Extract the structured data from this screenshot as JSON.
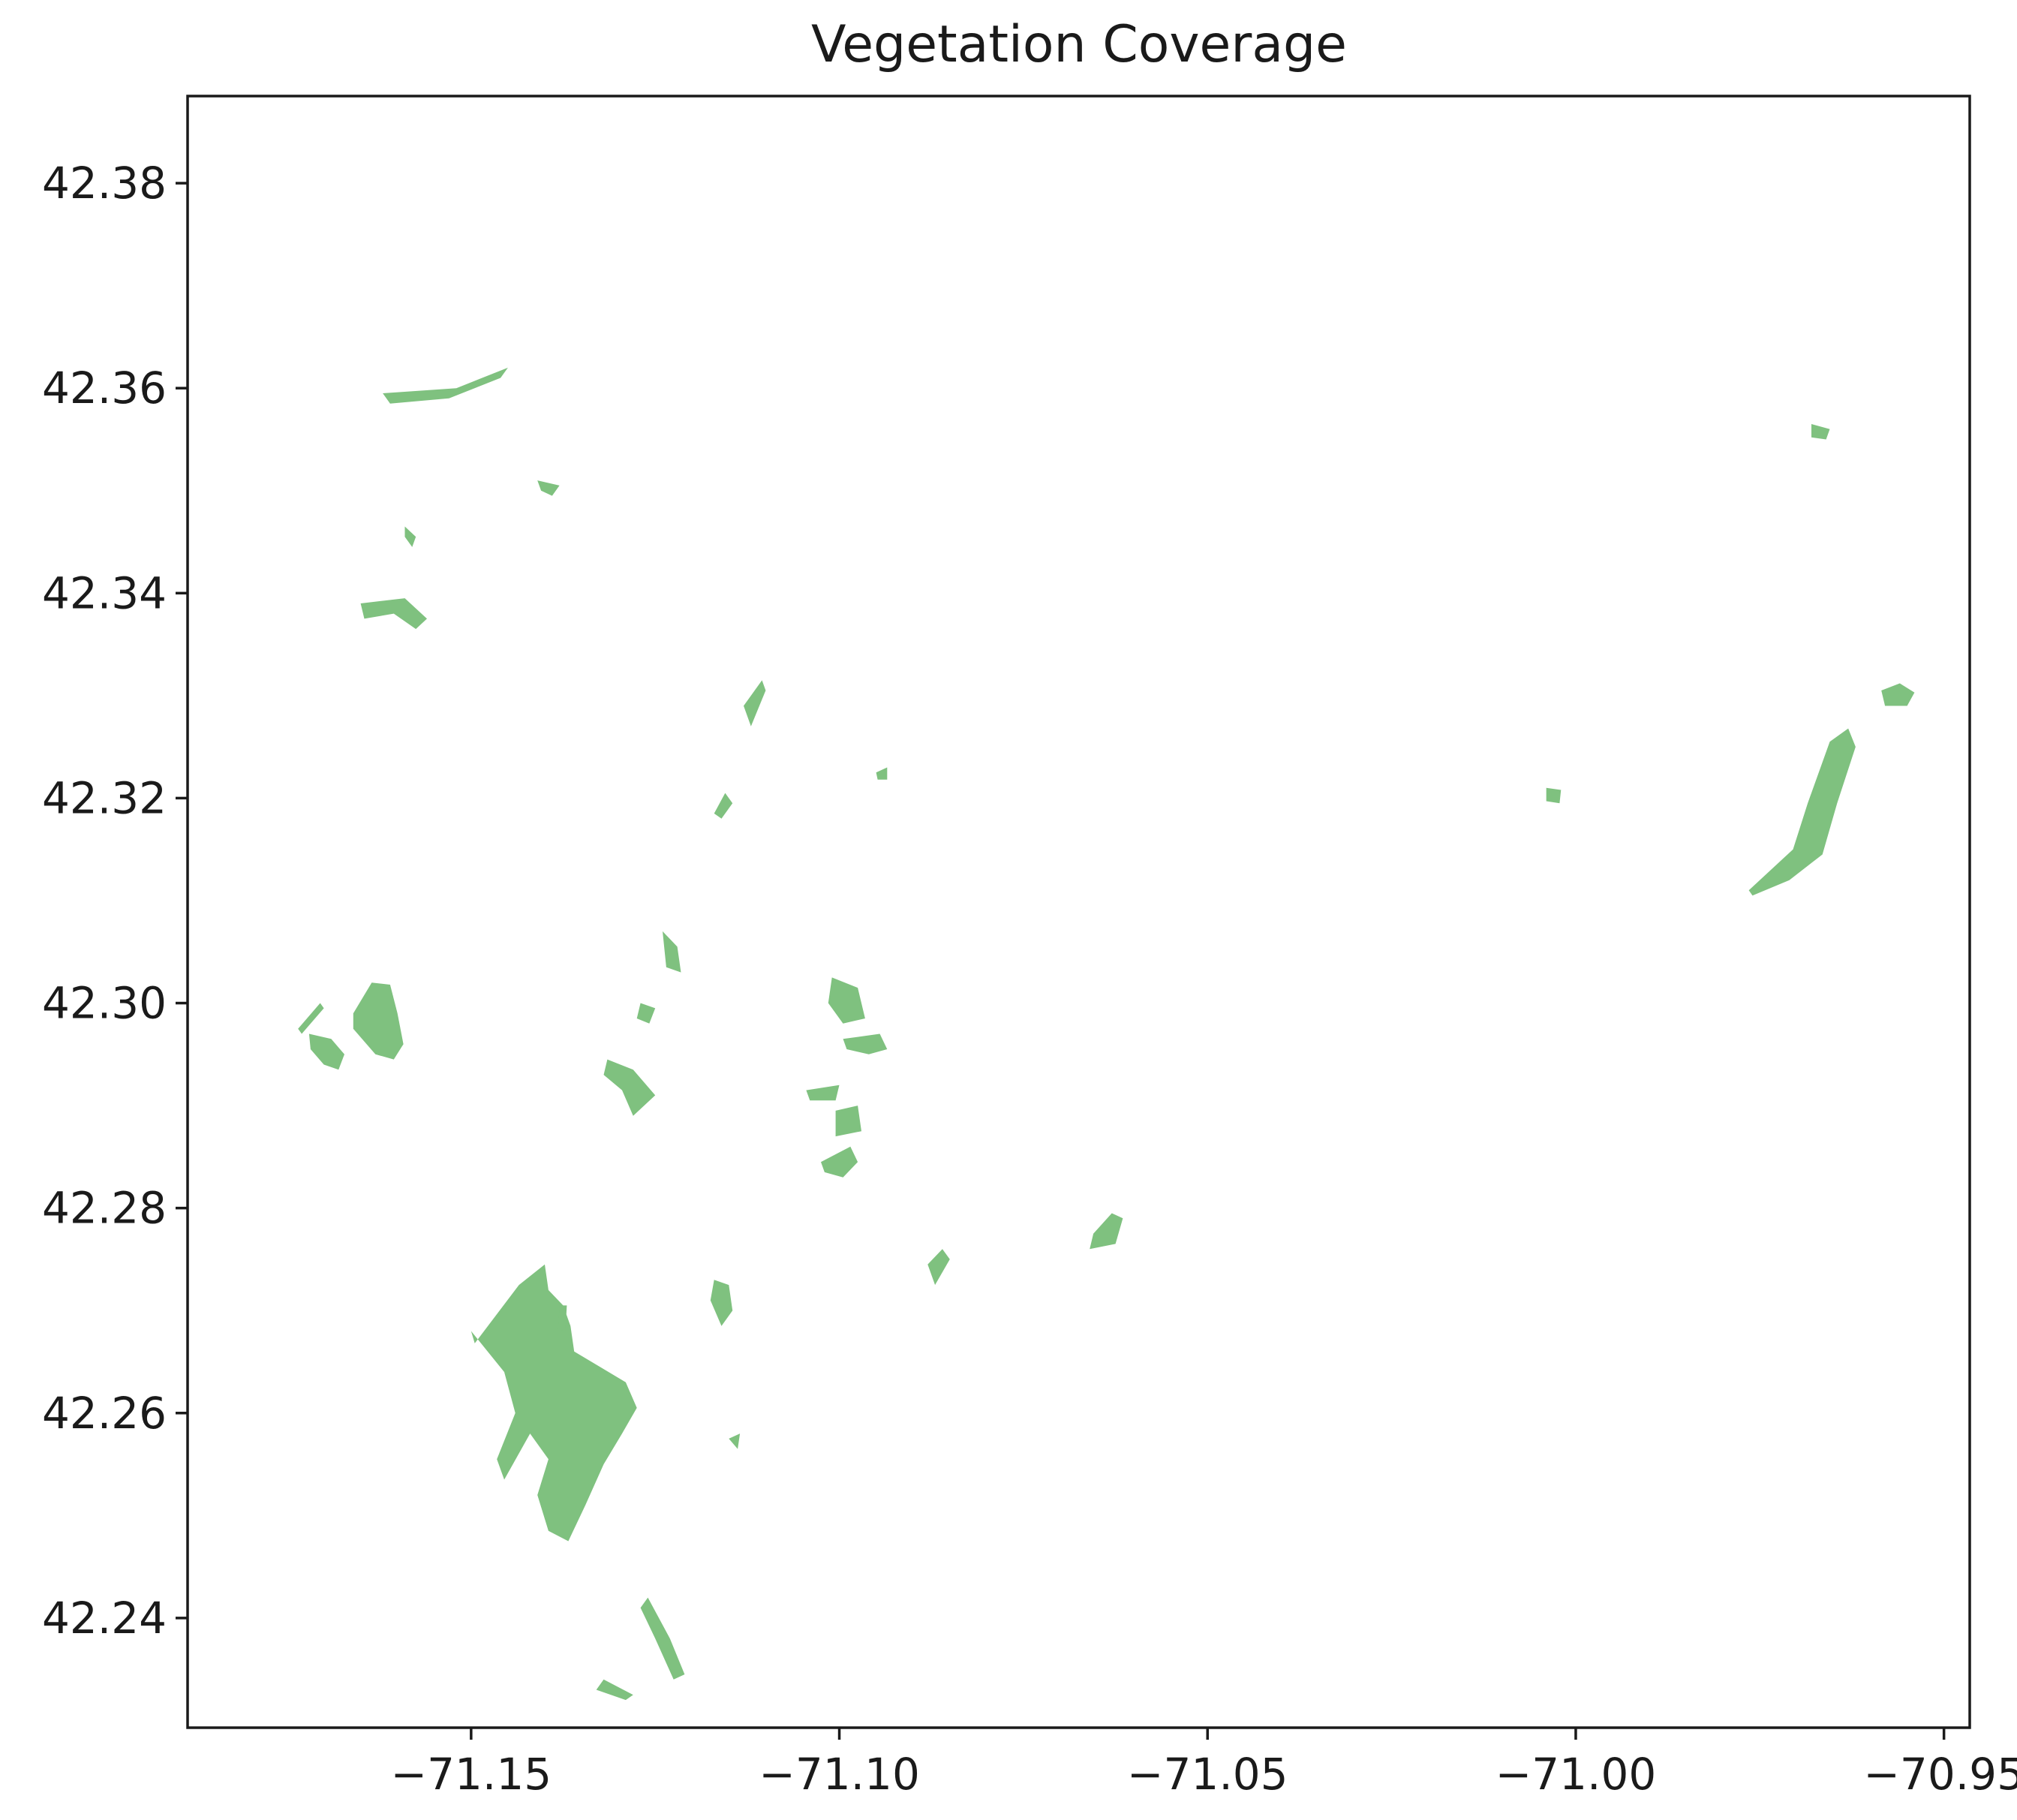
{
  "chart_data": {
    "type": "map",
    "title": "Vegetation Coverage",
    "xlabel": "",
    "ylabel": "",
    "xlim": [
      -71.1885,
      -70.9465
    ],
    "ylim": [
      42.2293,
      42.3885
    ],
    "x_ticks": [
      {
        "value": -71.15,
        "label": "−71.15"
      },
      {
        "value": -71.1,
        "label": "−71.10"
      },
      {
        "value": -71.05,
        "label": "−71.05"
      },
      {
        "value": -71.0,
        "label": "−71.00"
      },
      {
        "value": -70.95,
        "label": "−70.95"
      }
    ],
    "y_ticks": [
      {
        "value": 42.38,
        "label": "42.38"
      },
      {
        "value": 42.36,
        "label": "42.36"
      },
      {
        "value": 42.34,
        "label": "42.34"
      },
      {
        "value": 42.32,
        "label": "42.32"
      },
      {
        "value": 42.3,
        "label": "42.30"
      },
      {
        "value": 42.28,
        "label": "42.28"
      },
      {
        "value": 42.26,
        "label": "42.26"
      },
      {
        "value": 42.24,
        "label": "42.24"
      }
    ],
    "grid": false,
    "fill_color": "#7fc17f",
    "patches": [
      {
        "name": "vegetation-patch-southwest-large",
        "coords": [
          [
            -71.1495,
            42.2668
          ],
          [
            -71.1435,
            42.2725
          ],
          [
            -71.14,
            42.2745
          ],
          [
            -71.1395,
            42.272
          ],
          [
            -71.1375,
            42.2705
          ],
          [
            -71.1365,
            42.2685
          ],
          [
            -71.136,
            42.266
          ],
          [
            -71.1325,
            42.2645
          ],
          [
            -71.129,
            42.263
          ],
          [
            -71.1275,
            42.2605
          ],
          [
            -71.1295,
            42.258
          ],
          [
            -71.132,
            42.255
          ],
          [
            -71.1345,
            42.251
          ],
          [
            -71.1368,
            42.2475
          ],
          [
            -71.1395,
            42.2485
          ],
          [
            -71.141,
            42.252
          ],
          [
            -71.1395,
            42.2555
          ],
          [
            -71.142,
            42.258
          ],
          [
            -71.1455,
            42.2535
          ],
          [
            -71.1465,
            42.2555
          ],
          [
            -71.144,
            42.26
          ],
          [
            -71.1455,
            42.264
          ],
          [
            -71.15,
            42.268
          ]
        ]
      },
      {
        "name": "vegetation-patch-west-a",
        "coords": [
          [
            -71.166,
            42.299
          ],
          [
            -71.1635,
            42.302
          ],
          [
            -71.161,
            42.3018
          ],
          [
            -71.16,
            42.299
          ],
          [
            -71.1592,
            42.296
          ],
          [
            -71.1605,
            42.2945
          ],
          [
            -71.163,
            42.295
          ],
          [
            -71.166,
            42.2975
          ]
        ]
      },
      {
        "name": "vegetation-patch-west-b",
        "coords": [
          [
            -71.172,
            42.297
          ],
          [
            -71.169,
            42.2965
          ],
          [
            -71.1672,
            42.295
          ],
          [
            -71.168,
            42.2935
          ],
          [
            -71.17,
            42.294
          ],
          [
            -71.1718,
            42.2955
          ]
        ]
      },
      {
        "name": "vegetation-patch-west-c",
        "coords": [
          [
            -71.1735,
            42.2975
          ],
          [
            -71.1705,
            42.3
          ],
          [
            -71.17,
            42.2995
          ],
          [
            -71.173,
            42.297
          ]
        ]
      },
      {
        "name": "vegetation-patch-central-a",
        "coords": [
          [
            -71.1315,
            42.2945
          ],
          [
            -71.128,
            42.2935
          ],
          [
            -71.125,
            42.291
          ],
          [
            -71.128,
            42.289
          ],
          [
            -71.1295,
            42.2915
          ],
          [
            -71.132,
            42.293
          ]
        ]
      },
      {
        "name": "vegetation-patch-central-b",
        "coords": [
          [
            -71.127,
            42.3
          ],
          [
            -71.125,
            42.2995
          ],
          [
            -71.1258,
            42.298
          ],
          [
            -71.1275,
            42.2985
          ]
        ]
      },
      {
        "name": "vegetation-patch-central-c",
        "coords": [
          [
            -71.101,
            42.3025
          ],
          [
            -71.0975,
            42.3015
          ],
          [
            -71.0965,
            42.2985
          ],
          [
            -71.0995,
            42.298
          ],
          [
            -71.1015,
            42.3
          ]
        ]
      },
      {
        "name": "vegetation-patch-central-d",
        "coords": [
          [
            -71.0995,
            42.2965
          ],
          [
            -71.0945,
            42.297
          ],
          [
            -71.0935,
            42.2955
          ],
          [
            -71.096,
            42.295
          ],
          [
            -71.099,
            42.2955
          ]
        ]
      },
      {
        "name": "vegetation-patch-central-e",
        "coords": [
          [
            -71.1045,
            42.2915
          ],
          [
            -71.1,
            42.292
          ],
          [
            -71.1005,
            42.2905
          ],
          [
            -71.104,
            42.2905
          ]
        ]
      },
      {
        "name": "vegetation-patch-central-f",
        "coords": [
          [
            -71.1005,
            42.2895
          ],
          [
            -71.0975,
            42.29
          ],
          [
            -71.097,
            42.2875
          ],
          [
            -71.1005,
            42.287
          ]
        ]
      },
      {
        "name": "vegetation-patch-central-g",
        "coords": [
          [
            -71.1025,
            42.2845
          ],
          [
            -71.0985,
            42.286
          ],
          [
            -71.0975,
            42.2845
          ],
          [
            -71.0995,
            42.283
          ],
          [
            -71.102,
            42.2835
          ]
        ]
      },
      {
        "name": "vegetation-patch-central-h",
        "coords": [
          [
            -71.117,
            42.273
          ],
          [
            -71.115,
            42.2725
          ],
          [
            -71.1145,
            42.27
          ],
          [
            -71.116,
            42.2685
          ],
          [
            -71.1175,
            42.271
          ]
        ]
      },
      {
        "name": "vegetation-patch-central-i",
        "coords": [
          [
            -71.124,
            42.307
          ],
          [
            -71.122,
            42.3055
          ],
          [
            -71.1215,
            42.303
          ],
          [
            -71.1235,
            42.3035
          ]
        ]
      },
      {
        "name": "vegetation-patch-southeast-a",
        "coords": [
          [
            -71.0655,
            42.2775
          ],
          [
            -71.063,
            42.2795
          ],
          [
            -71.0615,
            42.279
          ],
          [
            -71.0625,
            42.2765
          ],
          [
            -71.066,
            42.276
          ]
        ]
      },
      {
        "name": "vegetation-patch-southeast-b",
        "coords": [
          [
            -71.088,
            42.2745
          ],
          [
            -71.086,
            42.276
          ],
          [
            -71.085,
            42.275
          ],
          [
            -71.087,
            42.2725
          ]
        ]
      },
      {
        "name": "vegetation-patch-south-a",
        "coords": [
          [
            -71.126,
            42.242
          ],
          [
            -71.123,
            42.238
          ],
          [
            -71.121,
            42.2345
          ],
          [
            -71.1225,
            42.234
          ],
          [
            -71.125,
            42.238
          ],
          [
            -71.127,
            42.241
          ]
        ]
      },
      {
        "name": "vegetation-patch-south-b",
        "coords": [
          [
            -71.133,
            42.233
          ],
          [
            -71.129,
            42.232
          ],
          [
            -71.128,
            42.2325
          ],
          [
            -71.132,
            42.234
          ]
        ]
      },
      {
        "name": "vegetation-patch-north-a",
        "coords": [
          [
            -71.165,
            42.339
          ],
          [
            -71.159,
            42.3395
          ],
          [
            -71.156,
            42.3375
          ],
          [
            -71.1575,
            42.3365
          ],
          [
            -71.1605,
            42.338
          ],
          [
            -71.1645,
            42.3375
          ]
        ]
      },
      {
        "name": "vegetation-patch-north-b",
        "coords": [
          [
            -71.162,
            42.3595
          ],
          [
            -71.152,
            42.36
          ],
          [
            -71.145,
            42.362
          ],
          [
            -71.146,
            42.361
          ],
          [
            -71.153,
            42.359
          ],
          [
            -71.161,
            42.3585
          ]
        ]
      },
      {
        "name": "vegetation-patch-north-c",
        "coords": [
          [
            -71.141,
            42.351
          ],
          [
            -71.138,
            42.3505
          ],
          [
            -71.139,
            42.3495
          ],
          [
            -71.1405,
            42.35
          ]
        ]
      },
      {
        "name": "vegetation-patch-north-d",
        "coords": [
          [
            -71.159,
            42.3465
          ],
          [
            -71.1575,
            42.3455
          ],
          [
            -71.158,
            42.3445
          ],
          [
            -71.159,
            42.3455
          ]
        ]
      },
      {
        "name": "vegetation-patch-mid-a",
        "coords": [
          [
            -71.113,
            42.329
          ],
          [
            -71.1105,
            42.3315
          ],
          [
            -71.11,
            42.3305
          ],
          [
            -71.112,
            42.327
          ]
        ]
      },
      {
        "name": "vegetation-patch-mid-b",
        "coords": [
          [
            -71.117,
            42.3185
          ],
          [
            -71.1155,
            42.3205
          ],
          [
            -71.1145,
            42.3195
          ],
          [
            -71.116,
            42.318
          ]
        ]
      },
      {
        "name": "vegetation-patch-mid-c",
        "coords": [
          [
            -71.095,
            42.3225
          ],
          [
            -71.0935,
            42.323
          ],
          [
            -71.0935,
            42.3218
          ],
          [
            -71.0948,
            42.3218
          ]
        ]
      },
      {
        "name": "vegetation-patch-east-small",
        "coords": [
          [
            -71.004,
            42.321
          ],
          [
            -71.002,
            42.3208
          ],
          [
            -71.0022,
            42.3195
          ],
          [
            -71.004,
            42.3197
          ]
        ]
      },
      {
        "name": "vegetation-patch-east-island",
        "coords": [
          [
            -70.9765,
            42.311
          ],
          [
            -70.9705,
            42.315
          ],
          [
            -70.9685,
            42.3195
          ],
          [
            -70.9655,
            42.3255
          ],
          [
            -70.963,
            42.3268
          ],
          [
            -70.962,
            42.325
          ],
          [
            -70.9645,
            42.3195
          ],
          [
            -70.9665,
            42.3145
          ],
          [
            -70.971,
            42.312
          ],
          [
            -70.976,
            42.3105
          ]
        ]
      },
      {
        "name": "vegetation-patch-east-ellipse",
        "coords": [
          [
            -70.9585,
            42.3305
          ],
          [
            -70.956,
            42.3312
          ],
          [
            -70.954,
            42.3303
          ],
          [
            -70.955,
            42.329
          ],
          [
            -70.958,
            42.329
          ]
        ]
      },
      {
        "name": "vegetation-patch-northeast-a",
        "coords": [
          [
            -70.968,
            42.3565
          ],
          [
            -70.9655,
            42.356
          ],
          [
            -70.966,
            42.355
          ],
          [
            -70.968,
            42.3552
          ]
        ]
      },
      {
        "name": "vegetation-patch-south-c",
        "coords": [
          [
            -71.115,
            42.2575
          ],
          [
            -71.1135,
            42.258
          ],
          [
            -71.1138,
            42.2565
          ]
        ]
      },
      {
        "name": "vegetation-patch-center-sw",
        "coords": [
          [
            -71.138,
            42.2705
          ],
          [
            -71.137,
            42.2705
          ],
          [
            -71.1372,
            42.268
          ],
          [
            -71.1382,
            42.2682
          ]
        ]
      }
    ]
  }
}
